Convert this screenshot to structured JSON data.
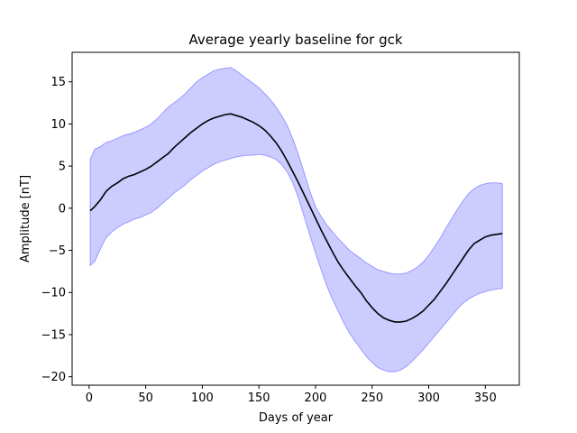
{
  "chart_data": {
    "type": "line",
    "title": "Average yearly baseline for gck",
    "xlabel": "Days of year",
    "ylabel": "Amplitude [nT]",
    "xlim": [
      -15,
      380
    ],
    "ylim": [
      -21,
      18.5
    ],
    "x_ticks": [
      0,
      50,
      100,
      150,
      200,
      250,
      300,
      350
    ],
    "y_ticks": [
      -20,
      -15,
      -10,
      -5,
      0,
      5,
      10,
      15
    ],
    "grid": false,
    "legend": "none",
    "colors": {
      "line": "#000000",
      "band_fill": "#ccccff",
      "band_edge": "#9999ff"
    },
    "series": [
      {
        "role": "mean",
        "x": [
          1,
          5,
          10,
          15,
          20,
          25,
          30,
          35,
          40,
          45,
          50,
          55,
          60,
          65,
          70,
          75,
          80,
          85,
          90,
          95,
          100,
          105,
          110,
          115,
          120,
          125,
          130,
          135,
          140,
          145,
          150,
          155,
          160,
          165,
          170,
          175,
          180,
          185,
          190,
          195,
          200,
          205,
          210,
          215,
          220,
          225,
          230,
          235,
          240,
          245,
          250,
          255,
          260,
          265,
          270,
          275,
          280,
          285,
          290,
          295,
          300,
          305,
          310,
          315,
          320,
          325,
          330,
          335,
          340,
          345,
          350,
          355,
          360,
          365
        ],
        "y": [
          -0.3,
          0.2,
          1.0,
          2.0,
          2.6,
          3.0,
          3.5,
          3.8,
          4.0,
          4.3,
          4.6,
          5.0,
          5.5,
          6.0,
          6.5,
          7.2,
          7.8,
          8.4,
          9.0,
          9.5,
          10.0,
          10.4,
          10.7,
          10.9,
          11.1,
          11.2,
          11.0,
          10.8,
          10.5,
          10.2,
          9.8,
          9.3,
          8.6,
          7.8,
          6.8,
          5.6,
          4.3,
          3.0,
          1.6,
          0.2,
          -1.2,
          -2.6,
          -3.9,
          -5.2,
          -6.4,
          -7.4,
          -8.3,
          -9.2,
          -10.0,
          -11.0,
          -11.8,
          -12.5,
          -13.0,
          -13.3,
          -13.5,
          -13.5,
          -13.4,
          -13.1,
          -12.7,
          -12.2,
          -11.5,
          -10.8,
          -9.9,
          -9.0,
          -8.0,
          -7.0,
          -6.0,
          -5.0,
          -4.2,
          -3.8,
          -3.4,
          -3.2,
          -3.1,
          -3.0
        ]
      },
      {
        "role": "upper_bound",
        "x": [
          1,
          5,
          10,
          15,
          20,
          25,
          30,
          35,
          40,
          45,
          50,
          55,
          60,
          65,
          70,
          75,
          80,
          85,
          90,
          95,
          100,
          105,
          110,
          115,
          120,
          125,
          130,
          135,
          140,
          145,
          150,
          155,
          160,
          165,
          170,
          175,
          180,
          185,
          190,
          195,
          200,
          205,
          210,
          215,
          220,
          225,
          230,
          235,
          240,
          245,
          250,
          255,
          260,
          265,
          270,
          275,
          280,
          285,
          290,
          295,
          300,
          305,
          310,
          315,
          320,
          325,
          330,
          335,
          340,
          345,
          350,
          355,
          360,
          365
        ],
        "y": [
          5.8,
          7.0,
          7.3,
          7.8,
          8.0,
          8.3,
          8.6,
          8.8,
          9.0,
          9.3,
          9.6,
          10.0,
          10.6,
          11.3,
          12.0,
          12.5,
          13.0,
          13.6,
          14.3,
          15.0,
          15.5,
          15.9,
          16.3,
          16.5,
          16.6,
          16.7,
          16.3,
          15.8,
          15.3,
          14.8,
          14.3,
          13.6,
          12.9,
          12.0,
          11.0,
          9.8,
          8.2,
          6.3,
          4.2,
          2.0,
          0.2,
          -1.0,
          -2.0,
          -2.8,
          -3.6,
          -4.3,
          -5.0,
          -5.5,
          -6.0,
          -6.5,
          -6.9,
          -7.3,
          -7.5,
          -7.7,
          -7.8,
          -7.8,
          -7.7,
          -7.4,
          -7.0,
          -6.4,
          -5.6,
          -4.6,
          -3.6,
          -2.4,
          -1.3,
          -0.2,
          0.8,
          1.7,
          2.3,
          2.7,
          2.9,
          3.0,
          3.0,
          2.9
        ]
      },
      {
        "role": "lower_bound",
        "x": [
          1,
          5,
          10,
          15,
          20,
          25,
          30,
          35,
          40,
          45,
          50,
          55,
          60,
          65,
          70,
          75,
          80,
          85,
          90,
          95,
          100,
          105,
          110,
          115,
          120,
          125,
          130,
          135,
          140,
          145,
          150,
          155,
          160,
          165,
          170,
          175,
          180,
          185,
          190,
          195,
          200,
          205,
          210,
          215,
          220,
          225,
          230,
          235,
          240,
          245,
          250,
          255,
          260,
          265,
          270,
          275,
          280,
          285,
          290,
          295,
          300,
          305,
          310,
          315,
          320,
          325,
          330,
          335,
          340,
          345,
          350,
          355,
          360,
          365
        ],
        "y": [
          -6.8,
          -6.3,
          -4.8,
          -3.5,
          -2.8,
          -2.3,
          -1.9,
          -1.6,
          -1.3,
          -1.1,
          -0.8,
          -0.5,
          0.0,
          0.6,
          1.2,
          1.8,
          2.3,
          2.8,
          3.4,
          3.9,
          4.4,
          4.8,
          5.2,
          5.5,
          5.7,
          5.9,
          6.1,
          6.2,
          6.3,
          6.3,
          6.4,
          6.3,
          6.1,
          5.8,
          5.2,
          4.3,
          3.0,
          1.2,
          -1.0,
          -3.2,
          -5.3,
          -7.3,
          -9.2,
          -10.8,
          -12.2,
          -13.6,
          -14.8,
          -15.8,
          -16.7,
          -17.6,
          -18.3,
          -18.9,
          -19.2,
          -19.4,
          -19.4,
          -19.2,
          -18.8,
          -18.2,
          -17.5,
          -16.8,
          -16.0,
          -15.2,
          -14.4,
          -13.6,
          -12.8,
          -12.0,
          -11.3,
          -10.8,
          -10.4,
          -10.1,
          -9.9,
          -9.7,
          -9.6,
          -9.5
        ]
      }
    ]
  }
}
